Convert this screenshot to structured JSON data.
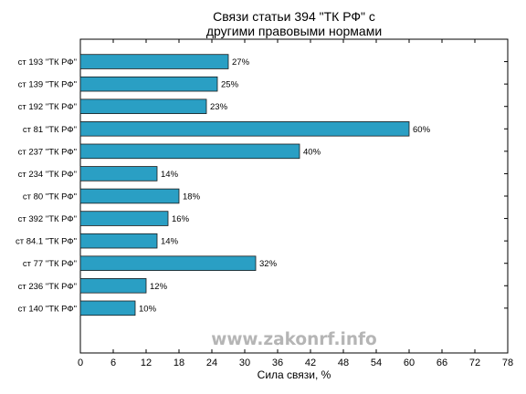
{
  "chart_data": {
    "type": "bar",
    "orientation": "horizontal",
    "title": [
      "Связи статьи 394 \"ТК РФ\" с",
      "другими правовыми нормами"
    ],
    "xlabel": "Сила связи, %",
    "ylabel": "",
    "xlim": [
      0,
      78
    ],
    "xticks": [
      0,
      6,
      12,
      18,
      24,
      30,
      36,
      42,
      48,
      54,
      60,
      66,
      72,
      78
    ],
    "grid": false,
    "legend": "none",
    "categories": [
      "ст 193 \"ТК РФ\"",
      "ст 139 \"ТК РФ\"",
      "ст 192 \"ТК РФ\"",
      "ст 81 \"ТК РФ\"",
      "ст 237 \"ТК РФ\"",
      "ст 234 \"ТК РФ\"",
      "ст 80 \"ТК РФ\"",
      "ст 392 \"ТК РФ\"",
      "ст 84.1 \"ТК РФ\"",
      "ст 77 \"ТК РФ\"",
      "ст 236 \"ТК РФ\"",
      "ст 140 \"ТК РФ\""
    ],
    "values": [
      27,
      25,
      23,
      60,
      40,
      14,
      18,
      16,
      14,
      32,
      12,
      10
    ],
    "value_labels": [
      "27%",
      "25%",
      "23%",
      "60%",
      "40%",
      "14%",
      "18%",
      "16%",
      "14%",
      "32%",
      "12%",
      "10%"
    ],
    "bar_color": "#2a9fc4",
    "bar_edge_color": "#1a1a1a"
  },
  "watermark": "www.zakonrf.info"
}
